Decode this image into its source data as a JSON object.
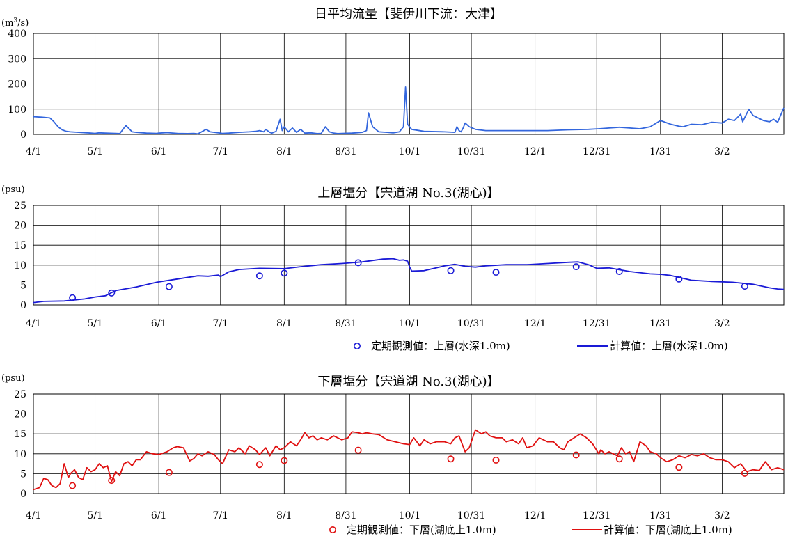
{
  "chart_data": [
    {
      "type": "line",
      "title": "日平均流量【斐伊川下流：大津】",
      "unit_label": "(m³/s)",
      "ylim": [
        0,
        400
      ],
      "yticks": [
        "0",
        "100",
        "200",
        "300",
        "400"
      ],
      "xlim": [
        0,
        365
      ],
      "x_tick_labels": [
        "4/1",
        "5/1",
        "6/1",
        "7/1",
        "8/1",
        "8/31",
        "10/1",
        "10/31",
        "12/1",
        "12/31",
        "1/31",
        "3/2"
      ],
      "x_tick_days": [
        0,
        30,
        61,
        91,
        122,
        152,
        183,
        213,
        244,
        274,
        305,
        335
      ],
      "grid": true,
      "line_color": "#3366dd",
      "series": [
        {
          "x": [
            0,
            4,
            8,
            10,
            12,
            14,
            16,
            18,
            22,
            26,
            28,
            30,
            31,
            32,
            35,
            40,
            42,
            45,
            48,
            50,
            55,
            60,
            61,
            65,
            70,
            75,
            78,
            80,
            84,
            85,
            86,
            88,
            90,
            92,
            95,
            100,
            105,
            108,
            110,
            112,
            113,
            115,
            116,
            118,
            120,
            121,
            122,
            124,
            126,
            128,
            130,
            132,
            135,
            138,
            140,
            142,
            144,
            146,
            148,
            150,
            155,
            160,
            162,
            163,
            165,
            168,
            172,
            175,
            178,
            180,
            181,
            182,
            184,
            190,
            200,
            205,
            206,
            207,
            208,
            209,
            210,
            212,
            215,
            220,
            230,
            240,
            250,
            260,
            270,
            275,
            280,
            285,
            290,
            295,
            300,
            305,
            310,
            314,
            316,
            318,
            320,
            325,
            330,
            335,
            338,
            341,
            344,
            345,
            348,
            350,
            355,
            358,
            360,
            362,
            365
          ],
          "y": [
            70,
            68,
            65,
            50,
            30,
            18,
            12,
            10,
            8,
            6,
            5,
            4,
            5,
            6,
            5,
            4,
            3,
            35,
            10,
            8,
            5,
            4,
            5,
            7,
            4,
            3,
            4,
            2,
            20,
            15,
            10,
            8,
            6,
            4,
            5,
            8,
            10,
            12,
            15,
            10,
            20,
            8,
            5,
            12,
            60,
            15,
            30,
            10,
            25,
            8,
            20,
            5,
            6,
            3,
            4,
            30,
            10,
            5,
            3,
            4,
            5,
            8,
            15,
            85,
            30,
            10,
            8,
            6,
            10,
            30,
            188,
            40,
            20,
            12,
            10,
            8,
            30,
            15,
            10,
            25,
            45,
            30,
            20,
            15,
            15,
            15,
            15,
            18,
            20,
            22,
            25,
            28,
            25,
            22,
            30,
            55,
            40,
            32,
            30,
            35,
            40,
            38,
            48,
            45,
            60,
            55,
            80,
            50,
            100,
            75,
            55,
            50,
            60,
            48,
            105
          ]
        }
      ]
    },
    {
      "type": "line",
      "title": "上層塩分【宍道湖 No.3(湖心)】",
      "unit_label": "(psu)",
      "ylim": [
        0,
        25
      ],
      "yticks": [
        "0",
        "5",
        "10",
        "15",
        "20",
        "25"
      ],
      "xlim": [
        0,
        365
      ],
      "x_tick_labels": [
        "4/1",
        "5/1",
        "6/1",
        "7/1",
        "8/1",
        "8/31",
        "10/1",
        "10/31",
        "12/1",
        "12/31",
        "1/31",
        "3/2"
      ],
      "x_tick_days": [
        0,
        30,
        61,
        91,
        122,
        152,
        183,
        213,
        244,
        274,
        305,
        335
      ],
      "grid": true,
      "line_color": "#1a1ad6",
      "marker_color": "#1a1ad6",
      "series": [
        {
          "name": "計算値：上層(水深1.0m)",
          "x": [
            0,
            5,
            15,
            25,
            30,
            35,
            40,
            50,
            60,
            70,
            80,
            85,
            90,
            91,
            95,
            100,
            110,
            122,
            130,
            140,
            150,
            160,
            170,
            175,
            178,
            180,
            182,
            183,
            184,
            190,
            200,
            205,
            210,
            215,
            220,
            230,
            240,
            250,
            260,
            265,
            270,
            274,
            280,
            290,
            300,
            305,
            310,
            320,
            330,
            340,
            350,
            358,
            362,
            365
          ],
          "y": [
            0.6,
            0.9,
            1.0,
            1.5,
            2.0,
            2.3,
            3.6,
            4.5,
            5.7,
            6.5,
            7.3,
            7.2,
            7.5,
            7.1,
            8.3,
            8.9,
            9.2,
            9.1,
            9.6,
            10.1,
            10.4,
            10.8,
            11.5,
            11.6,
            11.2,
            11.3,
            11.0,
            9.5,
            8.5,
            8.6,
            9.8,
            10.2,
            9.7,
            9.5,
            9.8,
            10.1,
            10.1,
            10.4,
            10.7,
            10.8,
            10.1,
            9.2,
            9.3,
            8.4,
            7.8,
            7.7,
            7.4,
            6.2,
            5.9,
            5.7,
            5.2,
            4.3,
            4.0,
            3.9
          ]
        },
        {
          "name": "定期観測値：上層(水深1.0m)",
          "x": [
            19,
            38,
            66,
            110,
            122,
            158,
            203,
            225,
            264,
            285,
            314,
            346
          ],
          "y": [
            1.8,
            3.0,
            4.6,
            7.3,
            8.0,
            10.6,
            8.6,
            8.2,
            9.6,
            8.4,
            6.5,
            4.7
          ]
        }
      ]
    },
    {
      "type": "line",
      "title": "下層塩分【宍道湖 No.3(湖心)】",
      "unit_label": "(psu)",
      "ylim": [
        0,
        25
      ],
      "yticks": [
        "0",
        "5",
        "10",
        "15",
        "20",
        "25"
      ],
      "xlim": [
        0,
        365
      ],
      "x_tick_labels": [
        "4/1",
        "5/1",
        "6/1",
        "7/1",
        "8/1",
        "8/31",
        "10/1",
        "10/31",
        "12/1",
        "12/31",
        "1/31",
        "3/2"
      ],
      "x_tick_days": [
        0,
        30,
        61,
        91,
        122,
        152,
        183,
        213,
        244,
        274,
        305,
        335
      ],
      "grid": true,
      "line_color": "#e01010",
      "marker_color": "#e01010",
      "series": [
        {
          "name": "計算値：下層(湖底上1.0m)",
          "x": [
            0,
            3,
            5,
            7,
            9,
            11,
            13,
            15,
            17,
            18,
            20,
            22,
            24,
            26,
            28,
            30,
            32,
            34,
            36,
            38,
            40,
            42,
            44,
            46,
            48,
            50,
            52,
            55,
            58,
            61,
            65,
            68,
            70,
            73,
            76,
            78,
            80,
            82,
            85,
            88,
            90,
            92,
            95,
            98,
            100,
            103,
            105,
            108,
            110,
            113,
            115,
            118,
            120,
            122,
            125,
            128,
            130,
            132,
            134,
            136,
            138,
            140,
            143,
            146,
            150,
            153,
            155,
            158,
            160,
            162,
            165,
            168,
            172,
            176,
            180,
            183,
            185,
            188,
            190,
            193,
            196,
            200,
            203,
            205,
            207,
            210,
            212,
            215,
            218,
            220,
            222,
            225,
            228,
            230,
            233,
            236,
            238,
            240,
            243,
            246,
            250,
            253,
            256,
            258,
            260,
            263,
            266,
            269,
            272,
            275,
            276,
            278,
            280,
            282,
            284,
            286,
            288,
            290,
            292,
            295,
            298,
            300,
            303,
            305,
            308,
            311,
            314,
            317,
            320,
            323,
            326,
            329,
            332,
            335,
            338,
            341,
            344,
            347,
            350,
            353,
            356,
            359,
            362,
            365
          ],
          "y": [
            1.0,
            1.5,
            3.8,
            3.5,
            2.0,
            1.5,
            2.5,
            7.5,
            4.0,
            5.0,
            6.0,
            4.0,
            3.5,
            6.5,
            5.5,
            6.0,
            7.5,
            6.5,
            7.0,
            3.0,
            5.5,
            4.5,
            7.5,
            8.0,
            7.0,
            8.5,
            8.5,
            10.5,
            10.0,
            9.8,
            10.5,
            11.5,
            11.8,
            11.5,
            8.2,
            8.8,
            10.0,
            9.5,
            10.5,
            9.8,
            8.5,
            7.5,
            11.0,
            10.5,
            11.5,
            10.0,
            12.0,
            11.0,
            9.8,
            11.5,
            9.5,
            12.0,
            11.0,
            11.5,
            13.0,
            12.0,
            13.5,
            15.3,
            14.0,
            14.5,
            13.5,
            14.0,
            13.5,
            14.5,
            13.5,
            14.0,
            15.5,
            15.3,
            15.0,
            15.3,
            15.0,
            14.8,
            13.5,
            13.0,
            12.5,
            12.3,
            14.0,
            12.0,
            13.5,
            12.5,
            13.0,
            13.0,
            12.5,
            14.0,
            14.5,
            10.5,
            11.5,
            16.0,
            15.0,
            15.5,
            14.5,
            14.0,
            14.0,
            13.0,
            13.5,
            12.5,
            14.0,
            11.5,
            12.0,
            14.0,
            13.0,
            13.0,
            11.5,
            11.0,
            13.0,
            14.0,
            15.0,
            14.0,
            12.5,
            10.0,
            11.0,
            10.0,
            10.5,
            10.0,
            9.5,
            11.5,
            10.0,
            10.5,
            8.0,
            13.0,
            12.0,
            10.5,
            10.0,
            9.0,
            8.0,
            8.5,
            9.5,
            9.0,
            9.8,
            9.5,
            10.0,
            9.0,
            8.5,
            8.5,
            8.0,
            6.5,
            7.5,
            5.5,
            6.0,
            5.8,
            8.0,
            6.0,
            6.5,
            6.0
          ]
        },
        {
          "name": "定期観測値：下層(湖底上1.0m)",
          "x": [
            19,
            38,
            66,
            110,
            122,
            158,
            203,
            225,
            264,
            285,
            314,
            346
          ],
          "y": [
            2.0,
            3.3,
            5.3,
            7.3,
            8.3,
            10.9,
            8.7,
            8.4,
            9.7,
            8.7,
            6.6,
            5.1
          ]
        }
      ]
    }
  ]
}
